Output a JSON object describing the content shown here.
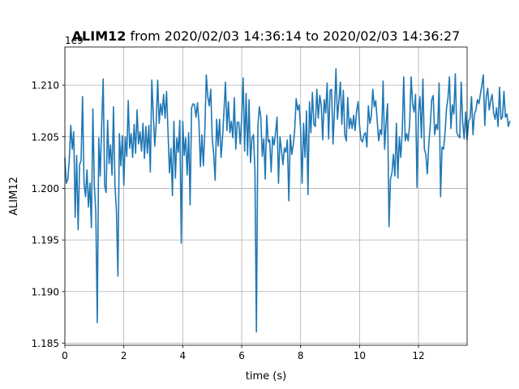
{
  "chart_data": {
    "type": "line",
    "title_bold": "ALIM12",
    "title_rest": " from 2020/02/03 14:36:14 to 2020/02/03 14:36:27",
    "xlabel": "time (s)",
    "ylabel": "ALIM12",
    "offset_text": "1e9",
    "xlim": [
      0,
      13.65
    ],
    "ylim": [
      1.1848,
      1.2137
    ],
    "x_ticks": [
      0,
      2,
      4,
      6,
      8,
      10,
      12
    ],
    "x_tick_labels": [
      "0",
      "2",
      "4",
      "6",
      "8",
      "10",
      "12"
    ],
    "y_ticks": [
      1.185,
      1.19,
      1.195,
      1.2,
      1.205,
      1.21
    ],
    "y_tick_labels": [
      "1.185",
      "1.190",
      "1.195",
      "1.200",
      "1.205",
      "1.210"
    ],
    "grid": true,
    "line_color": "#1f77b4",
    "x_step": 0.05,
    "series": [
      {
        "values": [
          1.2029,
          1.2005,
          1.2009,
          1.2028,
          1.2061,
          1.2038,
          1.2055,
          1.1972,
          1.2032,
          1.196,
          1.2023,
          1.2027,
          1.2089,
          1.2005,
          1.1992,
          1.2018,
          1.1982,
          1.2005,
          1.1962,
          1.2077,
          1.2003,
          1.1977,
          1.187,
          1.2049,
          1.2012,
          1.2062,
          1.2106,
          1.2003,
          1.1996,
          1.2066,
          1.2024,
          1.2042,
          1.2013,
          1.2079,
          1.2003,
          1.1978,
          1.1915,
          1.2053,
          1.2022,
          1.2051,
          1.2003,
          1.205,
          1.2031,
          1.2085,
          1.2039,
          1.2053,
          1.203,
          1.2062,
          1.2034,
          1.2076,
          1.2043,
          1.2055,
          1.2036,
          1.2063,
          1.2029,
          1.206,
          1.2034,
          1.2061,
          1.2016,
          1.2105,
          1.2072,
          1.2041,
          1.2063,
          1.2105,
          1.2063,
          1.2082,
          1.2071,
          1.2091,
          1.2068,
          1.2094,
          1.2055,
          1.2015,
          1.2039,
          1.1993,
          1.2065,
          1.201,
          1.2049,
          1.2035,
          1.2066,
          1.1947,
          1.2065,
          1.2032,
          1.2049,
          1.2013,
          1.2054,
          1.1984,
          1.2078,
          1.2082,
          1.2081,
          1.2069,
          1.2083,
          1.2064,
          1.2021,
          1.2052,
          1.2022,
          1.2056,
          1.211,
          1.2089,
          1.208,
          1.2096,
          1.2049,
          1.2033,
          1.2008,
          1.2067,
          1.2041,
          1.2067,
          1.203,
          1.2049,
          1.2075,
          1.2103,
          1.2056,
          1.2084,
          1.2054,
          1.2065,
          1.2049,
          1.2088,
          1.2038,
          1.2064,
          1.2064,
          1.2043,
          1.2068,
          1.2107,
          1.2036,
          1.2092,
          1.2032,
          1.2086,
          1.2025,
          1.2049,
          1.2052,
          1.2017,
          1.1861,
          1.206,
          1.2079,
          1.2069,
          1.2031,
          1.2048,
          1.2009,
          1.2071,
          1.2045,
          1.2047,
          1.2016,
          1.205,
          1.2042,
          1.2054,
          1.2069,
          1.2005,
          1.205,
          1.2037,
          1.2023,
          1.2039,
          1.2035,
          1.2047,
          1.1988,
          1.2052,
          1.2033,
          1.2042,
          1.2057,
          1.2087,
          1.2076,
          1.2081,
          1.2057,
          1.2005,
          1.2063,
          1.203,
          1.2075,
          1.1994,
          1.2084,
          1.2054,
          1.2093,
          1.2062,
          1.206,
          1.2096,
          1.2068,
          1.209,
          1.2081,
          1.2047,
          1.2086,
          1.2073,
          1.2102,
          1.2048,
          1.2095,
          1.2096,
          1.2043,
          1.2076,
          1.2116,
          1.2067,
          1.2085,
          1.2103,
          1.2062,
          1.2095,
          1.2052,
          1.2046,
          1.2088,
          1.2058,
          1.2068,
          1.2058,
          1.2071,
          1.2056,
          1.2075,
          1.2084,
          1.2061,
          1.2047,
          1.2045,
          1.2052,
          1.2054,
          1.204,
          1.208,
          1.2063,
          1.207,
          1.2096,
          1.2079,
          1.2085,
          1.2065,
          1.2046,
          1.2057,
          1.2052,
          1.2104,
          1.2038,
          1.2063,
          1.2082,
          1.1963,
          1.2009,
          1.2015,
          1.2033,
          1.2012,
          1.2063,
          1.201,
          1.205,
          1.203,
          1.2057,
          1.2108,
          1.2046,
          1.2053,
          1.2046,
          1.2062,
          1.2108,
          1.2082,
          1.2074,
          1.2091,
          1.2001,
          1.2073,
          1.2089,
          1.2049,
          1.2106,
          1.2038,
          1.2033,
          1.2014,
          1.2043,
          1.2061,
          1.2086,
          1.209,
          1.2052,
          1.2062,
          1.2057,
          1.2102,
          1.1992,
          1.204,
          1.2038,
          1.2053,
          1.2077,
          1.2087,
          1.2108,
          1.2058,
          1.2081,
          1.2072,
          1.2111,
          1.2054,
          1.2051,
          1.2049,
          1.2103,
          1.2064,
          1.2048,
          1.2074,
          1.2047,
          1.2065,
          1.2068,
          1.2089,
          1.2052,
          1.2072,
          1.2076,
          1.2086,
          1.2082,
          1.2091,
          1.21,
          1.211,
          1.2061,
          1.2089,
          1.2097,
          1.2076,
          1.2085,
          1.2091,
          1.2073,
          1.2067,
          1.2078,
          1.206,
          1.2098,
          1.2067,
          1.2069,
          1.2094,
          1.2069,
          1.2072,
          1.206,
          1.2065
        ]
      }
    ]
  }
}
